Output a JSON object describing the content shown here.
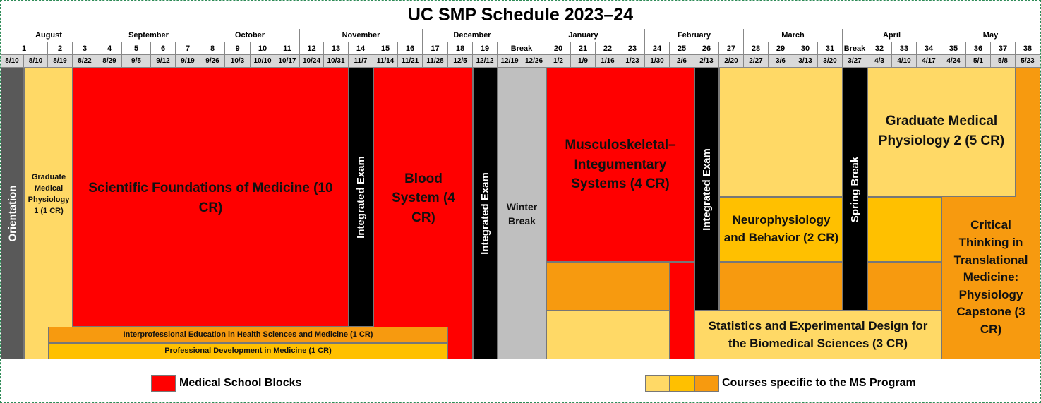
{
  "title": "UC SMP Schedule 2023–24",
  "months": [
    "August",
    "September",
    "October",
    "November",
    "December",
    "January",
    "February",
    "March",
    "April",
    "May"
  ],
  "weeks": [
    "1",
    "2",
    "3",
    "4",
    "5",
    "6",
    "7",
    "8",
    "9",
    "10",
    "11",
    "12",
    "13",
    "14",
    "15",
    "16",
    "17",
    "18",
    "19",
    "Break",
    "20",
    "21",
    "22",
    "23",
    "24",
    "25",
    "26",
    "27",
    "28",
    "29",
    "30",
    "31",
    "Break",
    "32",
    "33",
    "34",
    "35",
    "36",
    "37",
    "38"
  ],
  "dates": [
    "8/10",
    "8/10",
    "8/19",
    "8/22",
    "8/29",
    "9/5",
    "9/12",
    "9/19",
    "9/26",
    "10/3",
    "10/10",
    "10/17",
    "10/24",
    "10/31",
    "11/7",
    "11/14",
    "11/21",
    "11/28",
    "12/5",
    "12/12",
    "12/19",
    "12/26",
    "1/2",
    "1/9",
    "1/16",
    "1/23",
    "1/30",
    "2/6",
    "2/13",
    "2/20",
    "2/27",
    "3/6",
    "3/13",
    "3/20",
    "3/27",
    "4/3",
    "4/10",
    "4/17",
    "4/24",
    "5/1",
    "5/8",
    "5/23"
  ],
  "blocks": {
    "orientation": "Orientation",
    "gmp1": "Graduate Medical Physiology 1 (1 CR)",
    "sfm": "Scientific Foundations of Medicine (10 CR)",
    "exam1": "Integrated Exam",
    "ipe": "Interprofessional Education in Health Sciences and Medicine (1 CR)",
    "pd": "Professional Development in Medicine (1 CR)",
    "blood": "Blood System (4 CR)",
    "exam2": "Integrated Exam",
    "winter": "Winter Break",
    "msk": "Musculoskeletal–Integumentary Systems (4 CR)",
    "exam3": "Integrated Exam",
    "neuro": "Neurophysiology and Behavior (2 CR)",
    "stats": "Statistics and Experimental Design for the Biomedical Sciences (3 CR)",
    "spring": "Spring Break",
    "gmp2": "Graduate Medical Physiology 2 (5 CR)",
    "critical": "Critical Thinking in Translational Medicine: Physiology Capstone (3 CR)"
  },
  "legend": [
    "Medical School Blocks",
    "Courses specific to the MS Program"
  ]
}
